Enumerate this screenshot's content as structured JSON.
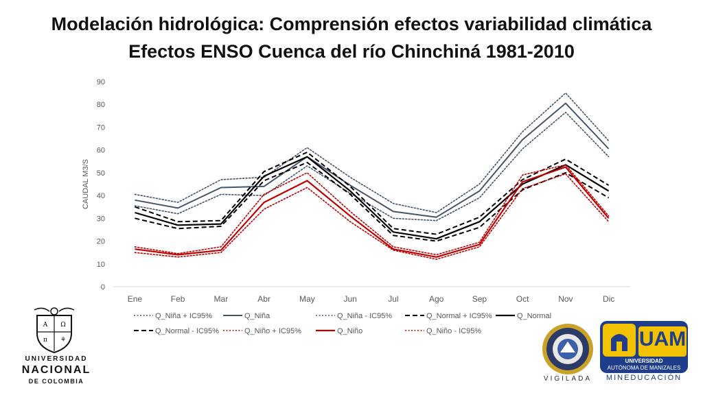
{
  "header": {
    "title": "Modelación hidrológica: Comprensión efectos variabilidad climática",
    "subtitle": "Efectos ENSO Cuenca del río Chinchiná 1981-2010"
  },
  "chart_data": {
    "type": "line",
    "ylabel": "CAUDAL M3/S",
    "xlabel": "",
    "ylim": [
      0,
      90
    ],
    "yticks": [
      0,
      10,
      20,
      30,
      40,
      50,
      60,
      70,
      80,
      90
    ],
    "grid": false,
    "legend_position": "bottom",
    "categories": [
      "Ene",
      "Feb",
      "Mar",
      "Abr",
      "May",
      "Jun",
      "Jul",
      "Ago",
      "Sep",
      "Oct",
      "Nov",
      "Dic"
    ],
    "series": [
      {
        "name": "Q_Niña + IC95%",
        "color": "#44546a",
        "style": "dotted",
        "width": 1.6,
        "values": [
          40.5,
          37,
          47,
          48,
          61,
          48,
          36.5,
          32.5,
          45,
          68,
          85,
          64
        ]
      },
      {
        "name": "Q_Niña",
        "color": "#44546a",
        "style": "solid",
        "width": 2,
        "values": [
          38,
          34.5,
          43.5,
          44,
          57,
          44.5,
          33,
          30.5,
          42,
          64.5,
          80.5,
          60.5
        ]
      },
      {
        "name": "Q_Niña - IC95%",
        "color": "#44546a",
        "style": "dotted",
        "width": 1.6,
        "values": [
          35.5,
          32,
          40.5,
          40,
          53,
          41,
          30,
          29,
          39,
          60.5,
          76.5,
          57
        ]
      },
      {
        "name": "Q_Normal + IC95%",
        "color": "#000000",
        "style": "dashed",
        "width": 2,
        "values": [
          35,
          28.5,
          29,
          50.5,
          59,
          44,
          25.5,
          23,
          30.5,
          47,
          56,
          44.5
        ]
      },
      {
        "name": "Q_Normal",
        "color": "#000000",
        "style": "solid",
        "width": 2.2,
        "values": [
          32.5,
          27,
          27.5,
          48.5,
          57,
          42,
          24,
          21,
          28.5,
          45,
          53.5,
          42
        ]
      },
      {
        "name": "Q_Normal - IC95%",
        "color": "#000000",
        "style": "dashed",
        "width": 2,
        "values": [
          30,
          25.5,
          26.5,
          46.5,
          54.5,
          40.5,
          22.5,
          20,
          26,
          42.5,
          50,
          39
        ]
      },
      {
        "name": "Q_Niño + IC95%",
        "color": "#c00000",
        "style": "dotted",
        "width": 1.6,
        "values": [
          17.5,
          14.5,
          17.5,
          40.5,
          50,
          33,
          17.5,
          14,
          19.5,
          49,
          53.5,
          31
        ]
      },
      {
        "name": "Q_Niño",
        "color": "#c00000",
        "style": "solid",
        "width": 2.2,
        "values": [
          16.5,
          14,
          16,
          37,
          46.5,
          31,
          16.5,
          13,
          18.5,
          46,
          52.5,
          30
        ]
      },
      {
        "name": "Q_Niño - IC95%",
        "color": "#c00000",
        "style": "dotted",
        "width": 1.6,
        "values": [
          15,
          13,
          15,
          34,
          43.5,
          28.5,
          16,
          12,
          17.5,
          43,
          49.5,
          28.5
        ]
      }
    ]
  },
  "logos": {
    "unal": {
      "line1": "UNIVERSIDAD",
      "line2": "NACIONAL",
      "line3": "DE COLOMBIA"
    },
    "seal": {
      "caption": "VIGILADA"
    },
    "uam": {
      "mark": "UAM",
      "name1": "UNIVERSIDAD",
      "name2": "AUTÓNOMA DE MANIZALES",
      "footer": "MINEDUCACIÓN",
      "blue": "#1f3d8a",
      "yellow": "#f2c200"
    }
  }
}
